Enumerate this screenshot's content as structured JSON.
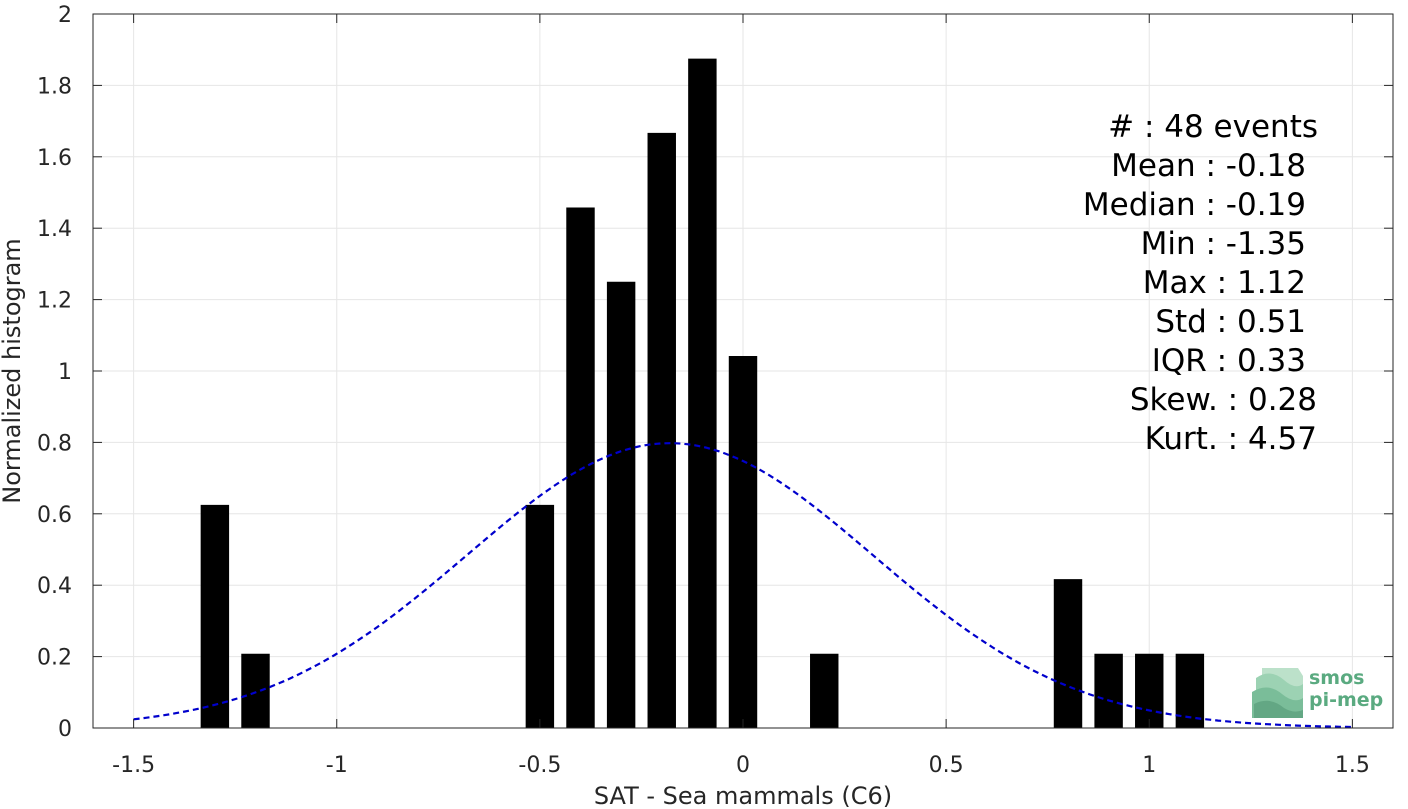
{
  "chart_data": {
    "type": "bar",
    "xlabel": "SAT - Sea mammals (C6)",
    "ylabel": "Normalized histogram",
    "xlim": [
      -1.6,
      1.6
    ],
    "ylim": [
      0,
      2
    ],
    "grid": true,
    "x_ticks": [
      -1.5,
      -1,
      -0.5,
      0,
      0.5,
      1,
      1.5
    ],
    "x_tick_labels": [
      "-1.5",
      "-1",
      "-0.5",
      "0",
      "0.5",
      "1",
      "1.5"
    ],
    "y_ticks": [
      0,
      0.2,
      0.4,
      0.6,
      0.8,
      1,
      1.2,
      1.4,
      1.6,
      1.8,
      2
    ],
    "y_tick_labels": [
      "0",
      "0.2",
      "0.4",
      "0.6",
      "0.8",
      "1",
      "1.2",
      "1.4",
      "1.6",
      "1.8",
      "2"
    ],
    "bin_width": 0.1,
    "bar_fraction": 0.7,
    "bar_color": "#000000",
    "bars": [
      {
        "x": -1.3,
        "y": 0.625
      },
      {
        "x": -1.2,
        "y": 0.208
      },
      {
        "x": -0.5,
        "y": 0.625
      },
      {
        "x": -0.4,
        "y": 1.458
      },
      {
        "x": -0.3,
        "y": 1.25
      },
      {
        "x": -0.2,
        "y": 1.667
      },
      {
        "x": -0.1,
        "y": 1.875
      },
      {
        "x": 0.0,
        "y": 1.042
      },
      {
        "x": 0.2,
        "y": 0.208
      },
      {
        "x": 0.8,
        "y": 0.417
      },
      {
        "x": 0.9,
        "y": 0.208
      },
      {
        "x": 1.0,
        "y": 0.208
      },
      {
        "x": 1.1,
        "y": 0.208
      }
    ],
    "fit_curve": {
      "type": "gaussian",
      "mean": -0.18,
      "std": 0.5,
      "x_range": [
        -1.5,
        1.5
      ],
      "color": "#0000cc",
      "style": "dashed"
    }
  },
  "stats": [
    {
      "label": "#  : 48 events"
    },
    {
      "label": "Mean : -0.18"
    },
    {
      "label": "Median : -0.19"
    },
    {
      "label": "Min : -1.35"
    },
    {
      "label": "Max : 1.12"
    },
    {
      "label": "Std : 0.51"
    },
    {
      "label": "IQR : 0.33"
    },
    {
      "label": "Skew. : 0.28"
    },
    {
      "label": "Kurt. : 4.57"
    }
  ],
  "logo": {
    "line1": "smos",
    "line2": "pi-mep",
    "color": "#5aaa80"
  }
}
